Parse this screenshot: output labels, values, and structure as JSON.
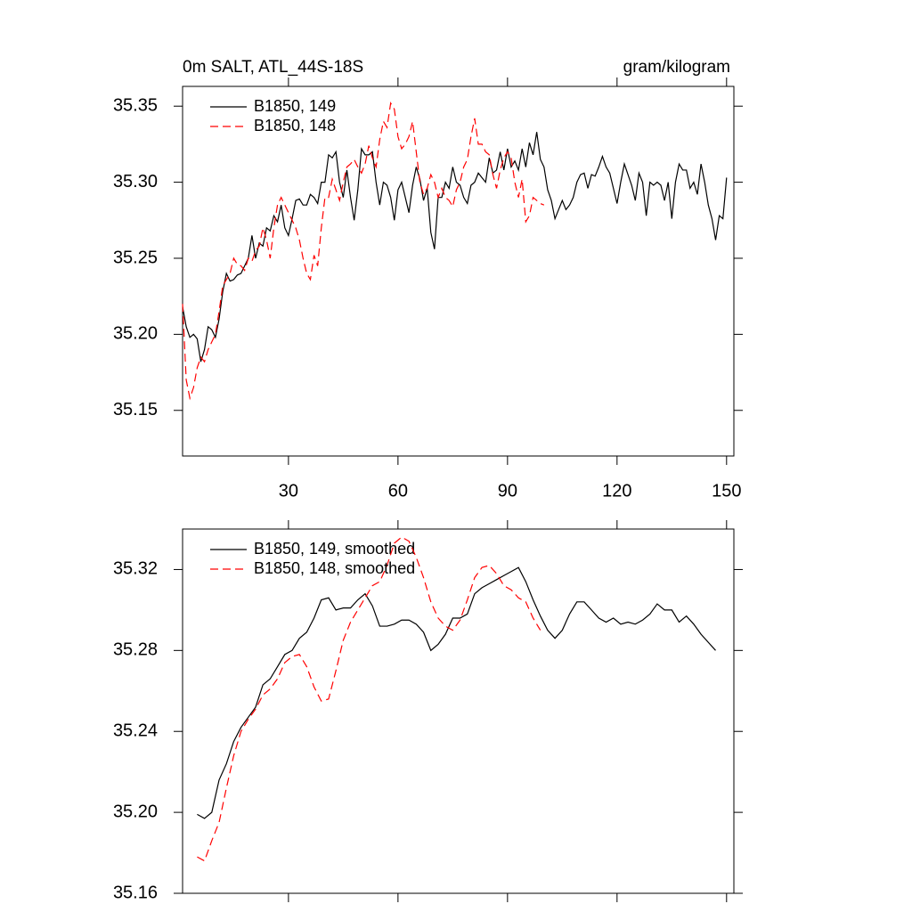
{
  "chart_data": [
    {
      "type": "line",
      "title": "0m SALT, ATL_44S-18S",
      "units": "gram/kilogram",
      "x": [
        1,
        2,
        3,
        4,
        5,
        6,
        7,
        8,
        9,
        10,
        11,
        12,
        13,
        14,
        15,
        16,
        17,
        18,
        19,
        20,
        21,
        22,
        23,
        24,
        25,
        26,
        27,
        28,
        29,
        30,
        31,
        32,
        33,
        34,
        35,
        36,
        37,
        38,
        39,
        40,
        41,
        42,
        43,
        44,
        45,
        46,
        47,
        48,
        49,
        50,
        51,
        52,
        53,
        54,
        55,
        56,
        57,
        58,
        59,
        60,
        61,
        62,
        63,
        64,
        65,
        66,
        67,
        68,
        69,
        70,
        71,
        72,
        73,
        74,
        75,
        76,
        77,
        78,
        79,
        80,
        81,
        82,
        83,
        84,
        85,
        86,
        87,
        88,
        89,
        90,
        91,
        92,
        93,
        94,
        95,
        96,
        97,
        98,
        99,
        100,
        101,
        102,
        103,
        104,
        105,
        106,
        107,
        108,
        109,
        110,
        111,
        112,
        113,
        114,
        115,
        116,
        117,
        118,
        119,
        120,
        121,
        122,
        123,
        124,
        125,
        126,
        127,
        128,
        129,
        130,
        131,
        132,
        133,
        134,
        135,
        136,
        137,
        138,
        139,
        140,
        141,
        142,
        143,
        144,
        145,
        146,
        147,
        148,
        149,
        150
      ],
      "series": [
        {
          "name": "B1850, 149",
          "color": "#000000",
          "line_style": "solid",
          "values": [
            35.218,
            35.205,
            35.198,
            35.2,
            35.197,
            35.182,
            35.19,
            35.205,
            35.203,
            35.198,
            35.21,
            35.228,
            35.24,
            35.235,
            35.236,
            35.239,
            35.24,
            35.245,
            35.25,
            35.265,
            35.25,
            35.26,
            35.258,
            35.27,
            35.268,
            35.278,
            35.274,
            35.285,
            35.27,
            35.265,
            35.276,
            35.288,
            35.289,
            35.285,
            35.285,
            35.292,
            35.29,
            35.286,
            35.3,
            35.3,
            35.318,
            35.316,
            35.32,
            35.3,
            35.29,
            35.308,
            35.29,
            35.275,
            35.295,
            35.322,
            35.318,
            35.318,
            35.32,
            35.3,
            35.285,
            35.3,
            35.298,
            35.29,
            35.275,
            35.295,
            35.3,
            35.29,
            35.28,
            35.298,
            35.31,
            35.302,
            35.288,
            35.296,
            35.267,
            35.256,
            35.29,
            35.29,
            35.3,
            35.296,
            35.31,
            35.3,
            35.298,
            35.29,
            35.286,
            35.298,
            35.3,
            35.306,
            35.303,
            35.3,
            35.316,
            35.306,
            35.308,
            35.32,
            35.308,
            35.322,
            35.31,
            35.314,
            35.308,
            35.322,
            35.31,
            35.326,
            35.318,
            35.333,
            35.315,
            35.31,
            35.295,
            35.288,
            35.276,
            35.282,
            35.288,
            35.282,
            35.285,
            35.29,
            35.3,
            35.305,
            35.306,
            35.296,
            35.305,
            35.304,
            35.31,
            35.317,
            35.31,
            35.306,
            35.296,
            35.286,
            35.3,
            35.312,
            35.305,
            35.298,
            35.288,
            35.306,
            35.3,
            35.278,
            35.3,
            35.298,
            35.3,
            35.298,
            35.288,
            35.3,
            35.276,
            35.3,
            35.312,
            35.308,
            35.308,
            35.296,
            35.3,
            35.292,
            35.312,
            35.3,
            35.285,
            35.276,
            35.262,
            35.278,
            35.276,
            35.303
          ]
        },
        {
          "name": "B1850, 148",
          "color": "#ff0000",
          "line_style": "dashed",
          "values": [
            35.22,
            35.17,
            35.158,
            35.165,
            35.178,
            35.185,
            35.182,
            35.19,
            35.195,
            35.2,
            35.215,
            35.232,
            35.236,
            35.24,
            35.25,
            35.246,
            35.245,
            35.242,
            35.25,
            35.248,
            35.255,
            35.258,
            35.27,
            35.262,
            35.25,
            35.27,
            35.285,
            35.29,
            35.285,
            35.28,
            35.275,
            35.27,
            35.262,
            35.25,
            35.24,
            35.236,
            35.252,
            35.245,
            35.27,
            35.29,
            35.29,
            35.302,
            35.295,
            35.288,
            35.3,
            35.31,
            35.312,
            35.315,
            35.31,
            35.306,
            35.312,
            35.324,
            35.316,
            35.31,
            35.328,
            35.34,
            35.336,
            35.352,
            35.348,
            35.33,
            35.322,
            35.325,
            35.33,
            35.34,
            35.32,
            35.3,
            35.292,
            35.296,
            35.305,
            35.3,
            35.29,
            35.296,
            35.29,
            35.288,
            35.284,
            35.295,
            35.3,
            35.31,
            35.315,
            35.33,
            35.342,
            35.325,
            35.325,
            35.32,
            35.318,
            35.305,
            35.296,
            35.308,
            35.316,
            35.32,
            35.316,
            35.3,
            35.29,
            35.302,
            35.274,
            35.278,
            35.29,
            35.288,
            35.286,
            35.285,
            null,
            null,
            null,
            null,
            null,
            null,
            null,
            null,
            null,
            null,
            null,
            null,
            null,
            null,
            null,
            null,
            null,
            null,
            null,
            null,
            null,
            null,
            null,
            null,
            null,
            null,
            null,
            null,
            null,
            null,
            null,
            null,
            null,
            null,
            null,
            null,
            null,
            null,
            null,
            null,
            null,
            null,
            null,
            null,
            null,
            null,
            null,
            null,
            null,
            null
          ]
        }
      ],
      "xlim": [
        1,
        152
      ],
      "ylim": [
        35.12,
        35.363
      ],
      "xticks": [
        30,
        60,
        90,
        120,
        150
      ],
      "yticks": [
        {
          "value": 35.15,
          "label": "35.15"
        },
        {
          "value": 35.2,
          "label": "35.20"
        },
        {
          "value": 35.25,
          "label": "35.25"
        },
        {
          "value": 35.3,
          "label": "35.30"
        },
        {
          "value": 35.35,
          "label": "35.35"
        }
      ],
      "legend": "upper left"
    },
    {
      "type": "line",
      "x": [
        5,
        7,
        9,
        11,
        13,
        15,
        17,
        19,
        21,
        23,
        25,
        27,
        29,
        31,
        33,
        35,
        37,
        39,
        41,
        43,
        45,
        47,
        49,
        51,
        53,
        55,
        57,
        59,
        61,
        63,
        65,
        67,
        69,
        71,
        73,
        75,
        77,
        79,
        81,
        83,
        85,
        87,
        89,
        91,
        93,
        95,
        97,
        99,
        101,
        103,
        105,
        107,
        109,
        111,
        113,
        115,
        117,
        119,
        121,
        123,
        125,
        127,
        129,
        131,
        133,
        135,
        137,
        139,
        141,
        143,
        145,
        147
      ],
      "series": [
        {
          "name": "B1850, 149, smoothed",
          "color": "#000000",
          "line_style": "solid",
          "values": [
            35.199,
            35.197,
            35.2,
            35.216,
            35.224,
            35.235,
            35.242,
            35.247,
            35.252,
            35.263,
            35.266,
            35.272,
            35.278,
            35.28,
            35.286,
            35.289,
            35.296,
            35.305,
            35.306,
            35.3,
            35.301,
            35.301,
            35.305,
            35.308,
            35.302,
            35.292,
            35.292,
            35.293,
            35.295,
            35.295,
            35.293,
            35.289,
            35.28,
            35.283,
            35.288,
            35.296,
            35.296,
            35.298,
            35.308,
            35.311,
            35.313,
            35.315,
            35.317,
            35.319,
            35.321,
            35.314,
            35.305,
            35.297,
            35.29,
            35.286,
            35.29,
            35.298,
            35.304,
            35.304,
            35.3,
            35.296,
            35.294,
            35.296,
            35.293,
            35.294,
            35.293,
            35.295,
            35.298,
            35.303,
            35.3,
            35.3,
            35.294,
            35.297,
            35.293,
            35.288,
            35.284,
            35.28
          ]
        },
        {
          "name": "B1850, 148, smoothed",
          "color": "#ff0000",
          "line_style": "dashed",
          "values": [
            35.178,
            35.176,
            35.186,
            35.195,
            35.212,
            35.228,
            35.24,
            35.246,
            35.251,
            35.258,
            35.261,
            35.266,
            35.274,
            35.277,
            35.278,
            35.272,
            35.262,
            35.255,
            35.256,
            35.27,
            35.285,
            35.294,
            35.3,
            35.306,
            35.312,
            35.314,
            35.322,
            35.333,
            35.336,
            35.334,
            35.326,
            35.316,
            35.304,
            35.296,
            35.292,
            35.29,
            35.295,
            35.305,
            35.316,
            35.321,
            35.322,
            35.318,
            35.312,
            35.31,
            35.306,
            35.304,
            35.296,
            35.29,
            null,
            null,
            null,
            null,
            null,
            null,
            null,
            null,
            null,
            null,
            null,
            null,
            null,
            null,
            null,
            null,
            null,
            null,
            null,
            null,
            null,
            null,
            null,
            null
          ]
        }
      ],
      "xlim": [
        1,
        152
      ],
      "ylim": [
        35.16,
        35.34
      ],
      "yticks": [
        {
          "value": 35.16,
          "label": "35.16"
        },
        {
          "value": 35.2,
          "label": "35.20"
        },
        {
          "value": 35.24,
          "label": "35.24"
        },
        {
          "value": 35.28,
          "label": "35.28"
        },
        {
          "value": 35.32,
          "label": "35.32"
        }
      ],
      "legend": "upper left"
    }
  ]
}
